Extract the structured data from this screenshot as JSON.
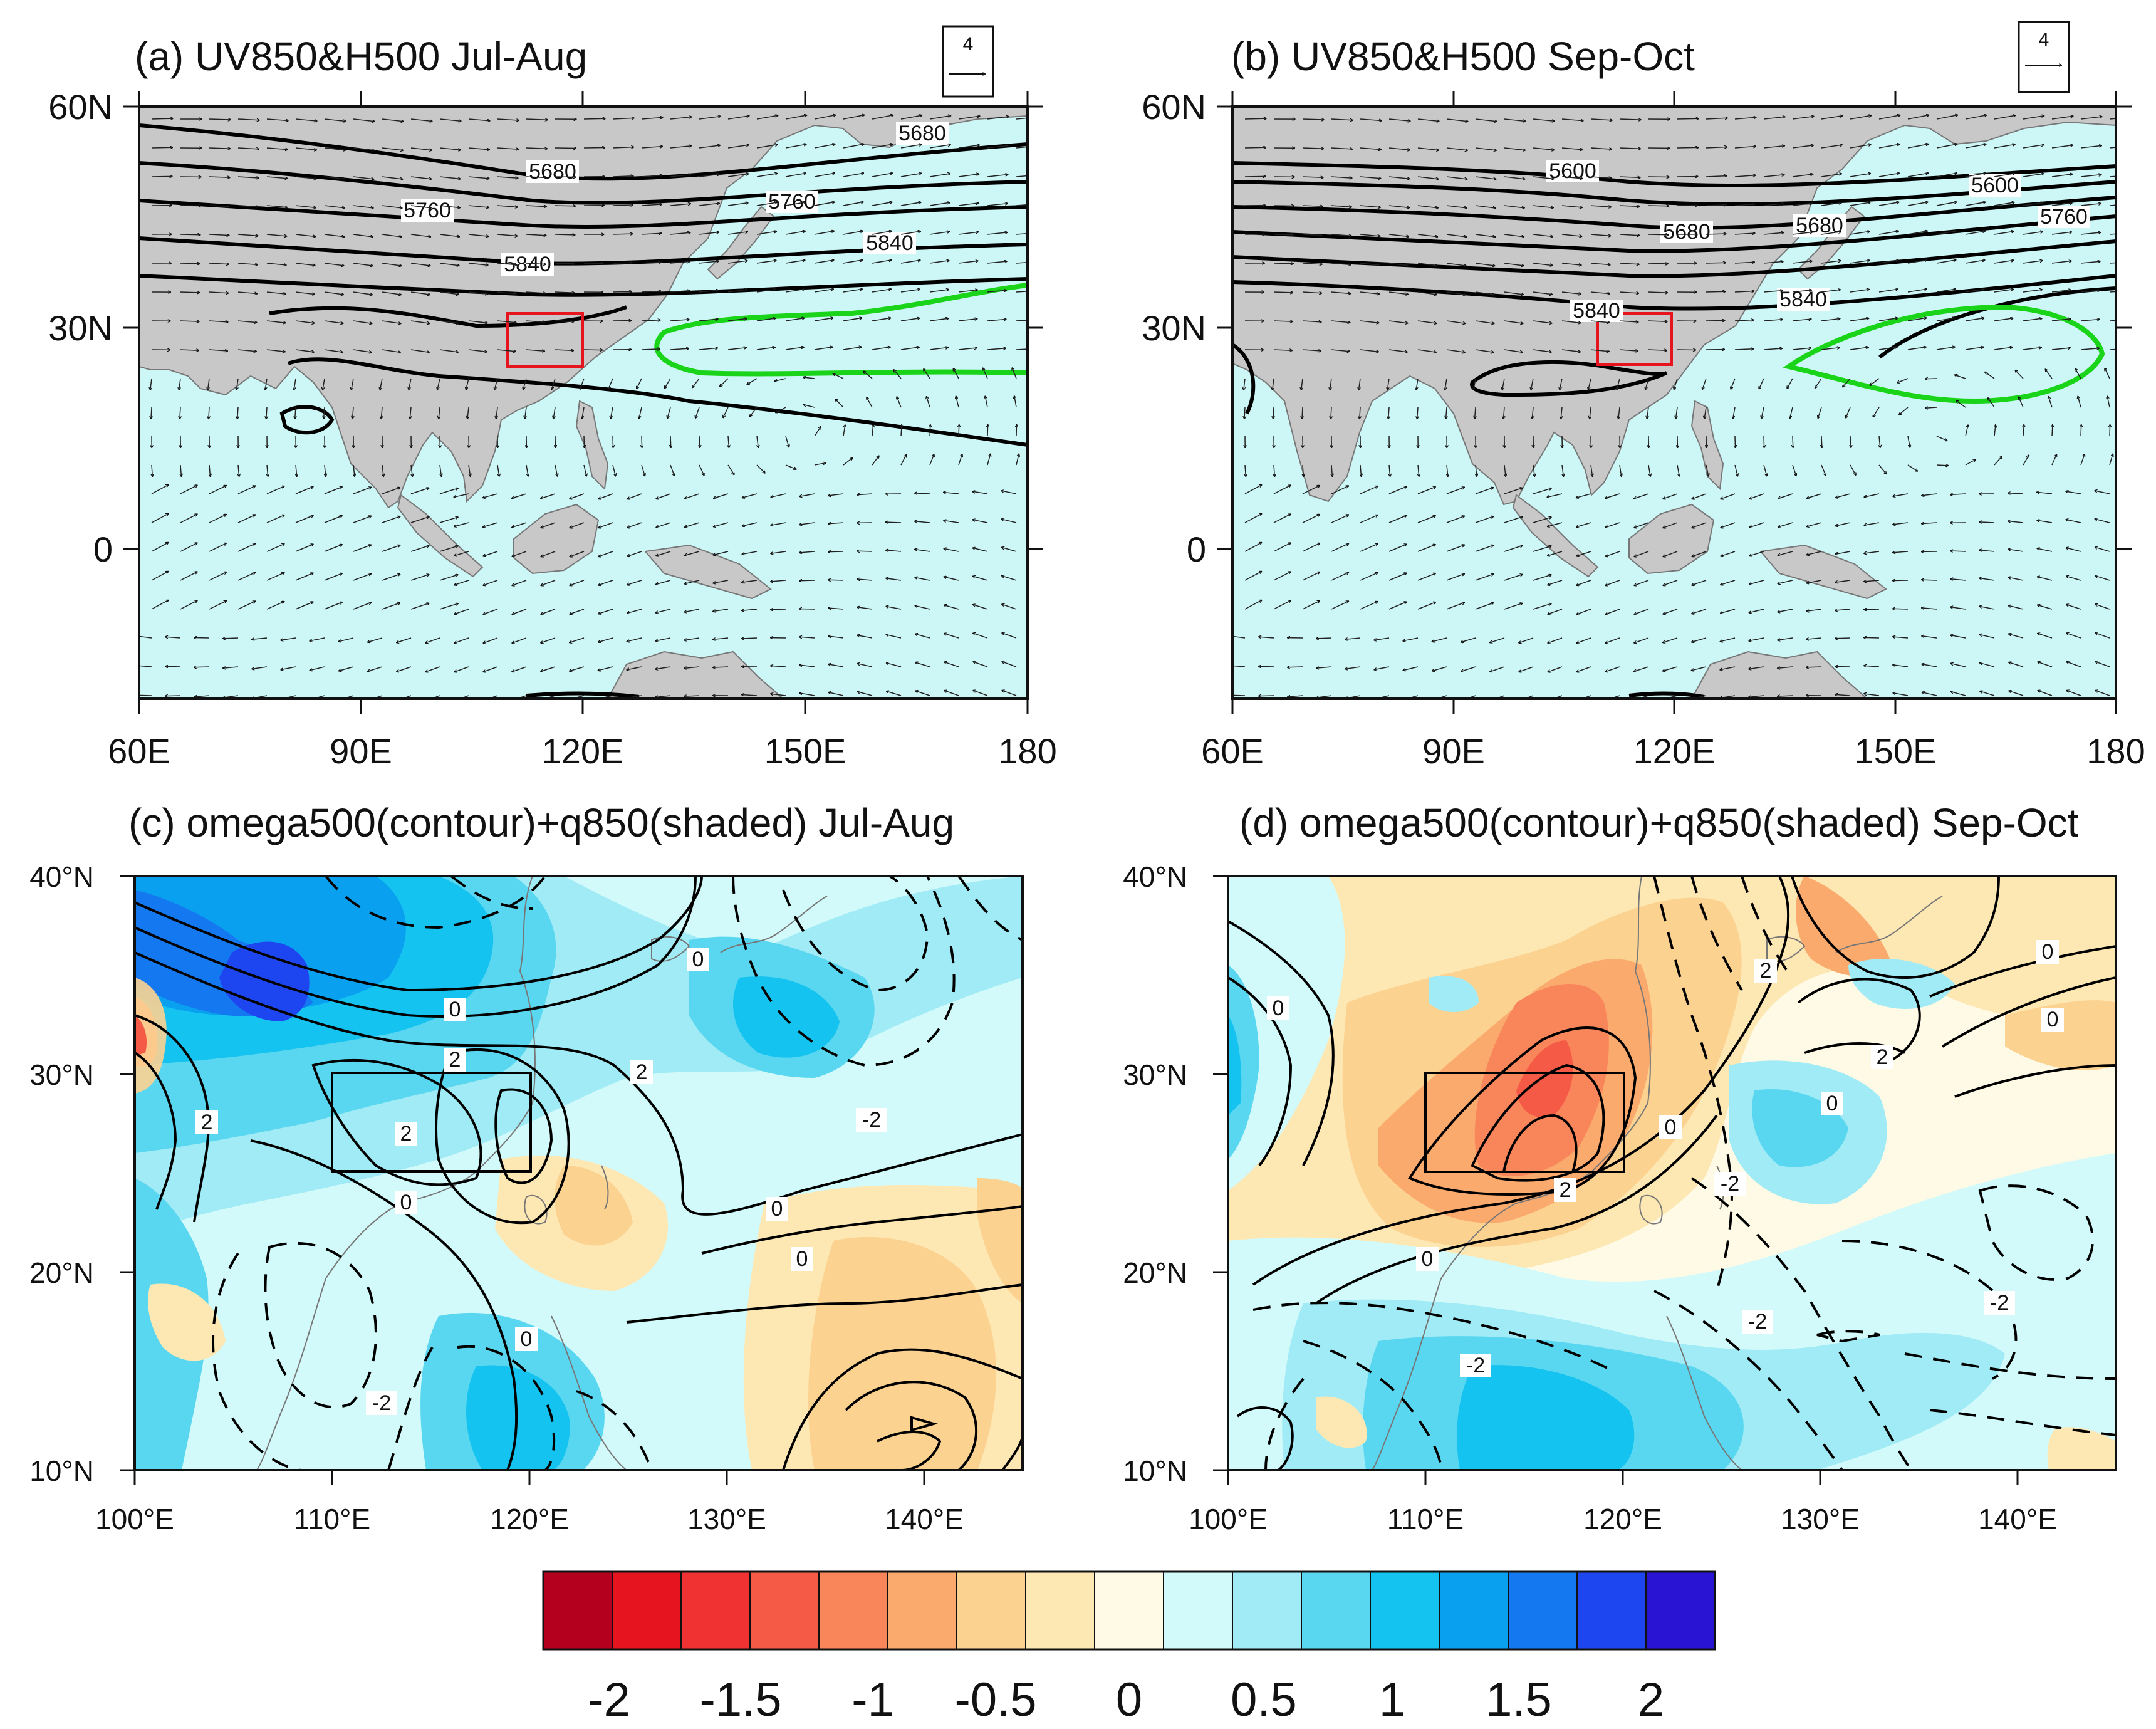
{
  "panels": [
    {
      "id": "a",
      "title": "(a) UV850&H500 Jul-Aug",
      "xticks": [
        "60E",
        "90E",
        "120E",
        "150E",
        "180"
      ],
      "yticks": [
        "60N",
        "30N",
        "0"
      ],
      "ref_vector": "4",
      "contour_labels": [
        "5680",
        "5760",
        "5840",
        "5680",
        "5760",
        "5840"
      ]
    },
    {
      "id": "b",
      "title": "(b) UV850&H500  Sep-Oct",
      "xticks": [
        "60E",
        "90E",
        "120E",
        "150E",
        "180"
      ],
      "yticks": [
        "60N",
        "30N",
        "0"
      ],
      "ref_vector": "4",
      "contour_labels": [
        "5600",
        "5680",
        "5680",
        "5600",
        "5760",
        "5840",
        "5840"
      ]
    },
    {
      "id": "c",
      "title": "(c) omega500(contour)+q850(shaded)  Jul-Aug",
      "xticks": [
        "100°E",
        "110°E",
        "120°E",
        "130°E",
        "140°E"
      ],
      "yticks": [
        "40°N",
        "30°N",
        "20°N",
        "10°N"
      ],
      "contour_labels": [
        "0",
        "2",
        "2",
        "2",
        "2",
        "0",
        "0",
        "0",
        "0",
        "-2",
        "-2",
        "0"
      ]
    },
    {
      "id": "d",
      "title": "(d) omega500(contour)+q850(shaded) Sep-Oct",
      "xticks": [
        "100°E",
        "110°E",
        "120°E",
        "130°E",
        "140°E"
      ],
      "yticks": [
        "40°N",
        "30°N",
        "20°N",
        "10°N"
      ],
      "contour_labels": [
        "0",
        "0",
        "2",
        "0",
        "2",
        "0",
        "-2",
        "-2",
        "-2",
        "-2",
        "0",
        "2",
        "0"
      ]
    }
  ],
  "colorbar": {
    "labels": [
      "-2",
      "-1.5",
      "-1",
      "-0.5",
      "0",
      "0.5",
      "1",
      "1.5",
      "2"
    ],
    "colors": [
      "#b4001e",
      "#e6141e",
      "#f03232",
      "#f55a46",
      "#f9865a",
      "#fbaa6e",
      "#fcd291",
      "#fde8b4",
      "#fefae6",
      "#d2fafa",
      "#a0ebf5",
      "#5ad7f0",
      "#14c3f0",
      "#0aa0f0",
      "#1478f0",
      "#1e46f0",
      "#2814d2"
    ]
  },
  "colors": {
    "ocean": "#cdf7f7",
    "land": "#c8c8c8",
    "contour": "#000000",
    "subtropical_high": "#19d419",
    "box_ab": "#e6141e",
    "box_cd": "#000000"
  }
}
